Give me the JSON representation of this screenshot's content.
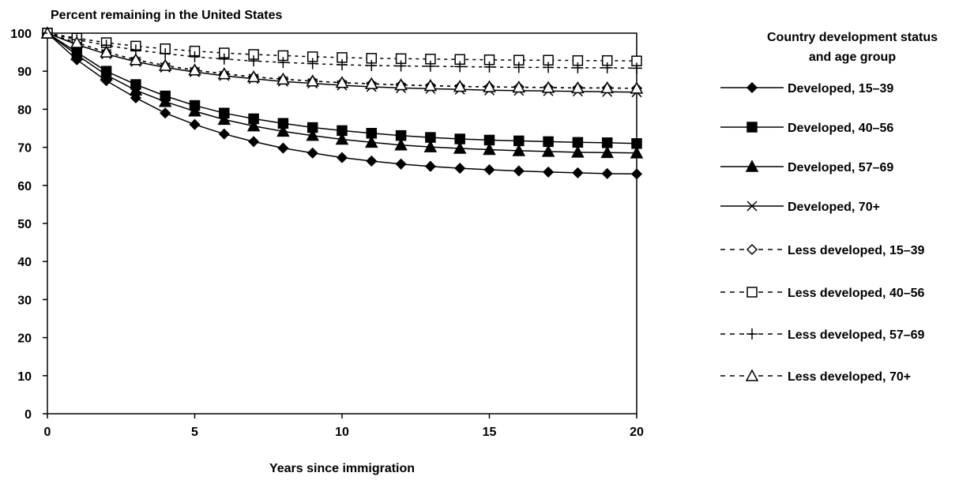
{
  "chart_data": {
    "type": "line",
    "title": "Percent remaining in the United States",
    "xlabel": "Years since immigration",
    "ylabel": "Percent remaining in the United States",
    "xlim": [
      0,
      20
    ],
    "ylim": [
      0,
      100
    ],
    "x_ticks": [
      0,
      5,
      10,
      15,
      20
    ],
    "y_ticks": [
      0,
      10,
      20,
      30,
      40,
      50,
      60,
      70,
      80,
      90,
      100
    ],
    "grid": false,
    "legend_title": "Country development status\nand age group",
    "legend_position": "right",
    "x": [
      0,
      1,
      2,
      3,
      4,
      5,
      6,
      7,
      8,
      9,
      10,
      11,
      12,
      13,
      14,
      15,
      16,
      17,
      18,
      19,
      20
    ],
    "series": [
      {
        "name": "Developed, 15–39",
        "marker": "filled-diamond",
        "line": "solid",
        "values": [
          100,
          93,
          87.5,
          83,
          79,
          76,
          73.5,
          71.5,
          69.8,
          68.5,
          67.3,
          66.4,
          65.6,
          65,
          64.5,
          64.1,
          63.8,
          63.5,
          63.3,
          63.1,
          63
        ]
      },
      {
        "name": "Developed, 40–56",
        "marker": "filled-square",
        "line": "solid",
        "values": [
          100,
          95,
          90,
          86.5,
          83.5,
          81,
          79,
          77.5,
          76.3,
          75.2,
          74.4,
          73.7,
          73.1,
          72.6,
          72.2,
          71.9,
          71.7,
          71.5,
          71.3,
          71.2,
          71
        ]
      },
      {
        "name": "Developed, 57–69",
        "marker": "filled-triangle",
        "line": "solid",
        "values": [
          100,
          94.3,
          89,
          85,
          82,
          79.5,
          77.3,
          75.6,
          74.2,
          73.1,
          72.1,
          71.3,
          70.6,
          70.1,
          69.7,
          69.4,
          69.1,
          68.9,
          68.7,
          68.6,
          68.5
        ]
      },
      {
        "name": "Developed, 70+",
        "marker": "x",
        "line": "solid",
        "values": [
          100,
          97,
          94.5,
          92.5,
          91,
          89.8,
          88.8,
          88,
          87.3,
          86.8,
          86.3,
          85.9,
          85.6,
          85.4,
          85.2,
          85,
          84.9,
          84.8,
          84.7,
          84.6,
          84.5
        ]
      },
      {
        "name": "Less developed, 15–39",
        "marker": "open-diamond",
        "line": "dashed",
        "values": [
          100,
          97.5,
          95,
          93,
          91.5,
          90.3,
          89.3,
          88.5,
          87.9,
          87.4,
          87,
          86.7,
          86.4,
          86.2,
          86,
          85.9,
          85.8,
          85.7,
          85.6,
          85.6,
          85.5
        ]
      },
      {
        "name": "Less developed, 40–56",
        "marker": "open-square",
        "line": "dashed",
        "values": [
          100,
          98.7,
          97.5,
          96.6,
          95.9,
          95.3,
          94.8,
          94.4,
          94.1,
          93.8,
          93.6,
          93.4,
          93.3,
          93.2,
          93.1,
          93,
          92.9,
          92.9,
          92.8,
          92.8,
          92.7
        ]
      },
      {
        "name": "Less developed, 57–69",
        "marker": "plus",
        "line": "dashed",
        "values": [
          100,
          98.3,
          96.8,
          95.6,
          94.6,
          93.8,
          93.2,
          92.7,
          92.3,
          92,
          91.7,
          91.5,
          91.4,
          91.3,
          91.2,
          91.1,
          91,
          91,
          90.9,
          90.9,
          90.8
        ]
      },
      {
        "name": "Less developed, 70+",
        "marker": "open-triangle",
        "line": "dashed",
        "values": [
          100,
          97.5,
          95,
          93,
          91.5,
          90.3,
          89.3,
          88.5,
          87.9,
          87.4,
          87,
          86.7,
          86.4,
          86.2,
          86,
          85.9,
          85.8,
          85.7,
          85.6,
          85.6,
          85.5
        ]
      }
    ]
  }
}
